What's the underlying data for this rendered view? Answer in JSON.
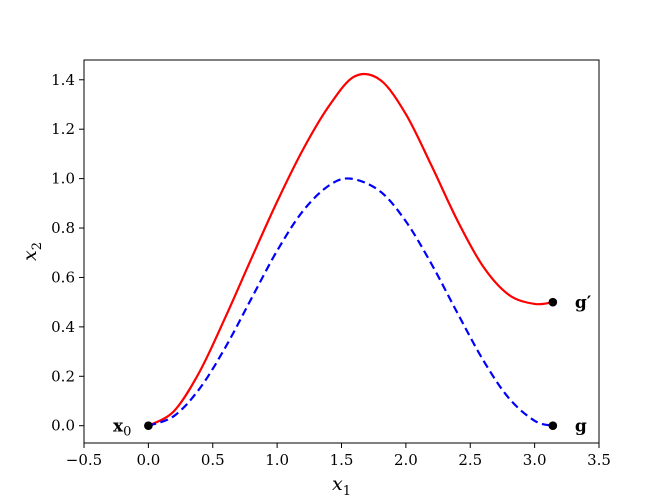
{
  "chart_data": {
    "type": "line",
    "xlabel": "x",
    "xlabel_subscript": "1",
    "ylabel": "x",
    "ylabel_subscript": "2",
    "xlim": [
      -0.5,
      3.5
    ],
    "ylim": [
      -0.07,
      1.48
    ],
    "x_ticks": [
      -0.5,
      0.0,
      0.5,
      1.0,
      1.5,
      2.0,
      2.5,
      3.0,
      3.5
    ],
    "x_tick_labels": [
      "−0.5",
      "0.0",
      "0.5",
      "1.0",
      "1.5",
      "2.0",
      "2.5",
      "3.0",
      "3.5"
    ],
    "y_ticks": [
      0.0,
      0.2,
      0.4,
      0.6,
      0.8,
      1.0,
      1.2,
      1.4
    ],
    "y_tick_labels": [
      "0.0",
      "0.2",
      "0.4",
      "0.6",
      "0.8",
      "1.0",
      "1.2",
      "1.4"
    ],
    "grid": false,
    "legend": "none",
    "series": [
      {
        "style": "solid",
        "color": "#ff0000",
        "x": [
          0.0,
          0.2,
          0.4,
          0.6,
          0.8,
          1.0,
          1.2,
          1.4,
          1.6,
          1.8,
          2.0,
          2.2,
          2.4,
          2.6,
          2.8,
          3.0,
          3.1416
        ],
        "y": [
          0.0,
          0.0596,
          0.2205,
          0.4411,
          0.6765,
          0.9069,
          1.1168,
          1.2917,
          1.4132,
          1.3997,
          1.2609,
          1.0514,
          0.8307,
          0.6442,
          0.5296,
          0.4929,
          0.5
        ]
      },
      {
        "style": "dashed",
        "color": "#0000ff",
        "x": [
          0.0,
          0.2,
          0.4,
          0.6,
          0.8,
          1.0,
          1.2,
          1.4,
          1.5708,
          1.8,
          2.0,
          2.2,
          2.4,
          2.6,
          2.8,
          3.0,
          3.1416
        ],
        "y": [
          0.0,
          0.0395,
          0.1516,
          0.3188,
          0.5146,
          0.7081,
          0.8687,
          0.9711,
          1.0,
          0.9484,
          0.8268,
          0.6534,
          0.4566,
          0.2657,
          0.1113,
          0.0199,
          0.0
        ]
      }
    ],
    "points": [
      {
        "x": 0.0,
        "y": 0.0,
        "label": "x",
        "label_subscript": "0",
        "label_side": "left"
      },
      {
        "x": 3.1416,
        "y": 0.5,
        "label": "g′",
        "label_side": "right"
      },
      {
        "x": 3.1416,
        "y": 0.0,
        "label": "g",
        "label_side": "right"
      }
    ],
    "marker_color": "#000000",
    "axis_color": "#000000"
  }
}
